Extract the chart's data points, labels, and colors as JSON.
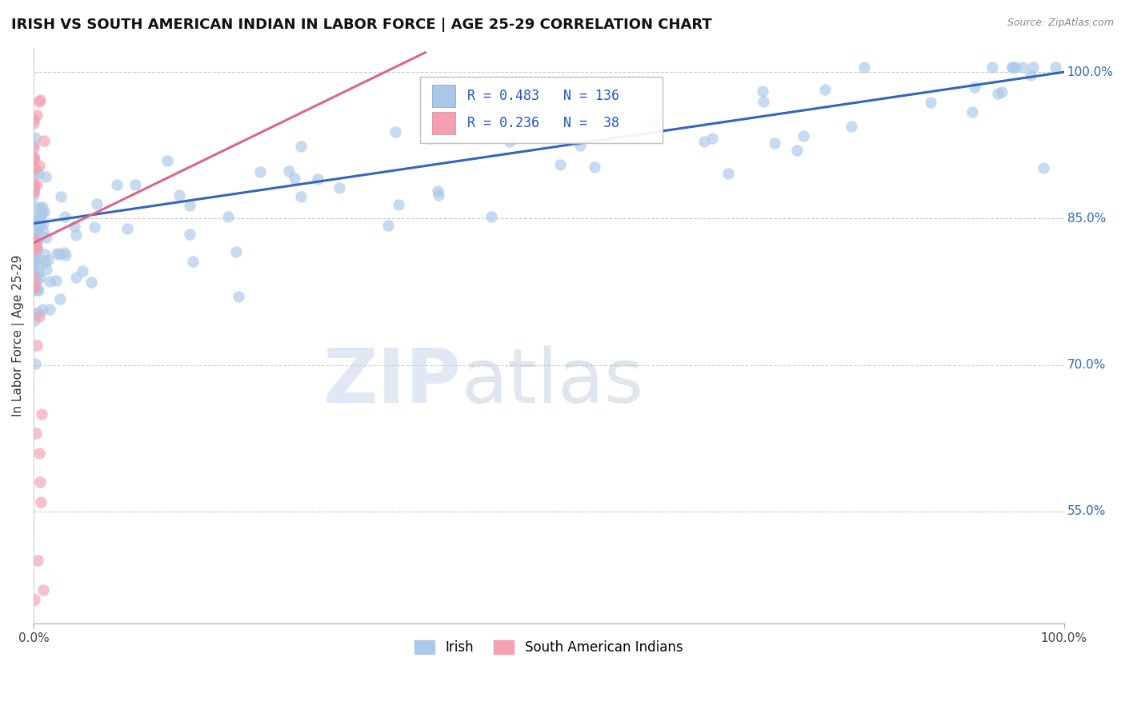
{
  "title": "IRISH VS SOUTH AMERICAN INDIAN IN LABOR FORCE | AGE 25-29 CORRELATION CHART",
  "source_text": "Source: ZipAtlas.com",
  "ylabel": "In Labor Force | Age 25-29",
  "xlim": [
    0.0,
    1.0
  ],
  "ylim": [
    0.435,
    1.025
  ],
  "y_tick_positions": [
    0.55,
    0.7,
    0.85,
    1.0
  ],
  "y_tick_labels": [
    "55.0%",
    "70.0%",
    "85.0%",
    "100.0%"
  ],
  "irish_R": 0.483,
  "irish_N": 136,
  "sai_R": 0.236,
  "sai_N": 38,
  "irish_color": "#aac8e8",
  "sai_color": "#f4a0b0",
  "irish_trend_color": "#3366bb",
  "sai_trend_color": "#dd6688",
  "legend_irish_label": "Irish",
  "legend_sai_label": "South American Indians",
  "background_color": "#ffffff",
  "watermark_text_bold": "ZIP",
  "watermark_text_light": "atlas",
  "title_fontsize": 13,
  "axis_label_fontsize": 11
}
